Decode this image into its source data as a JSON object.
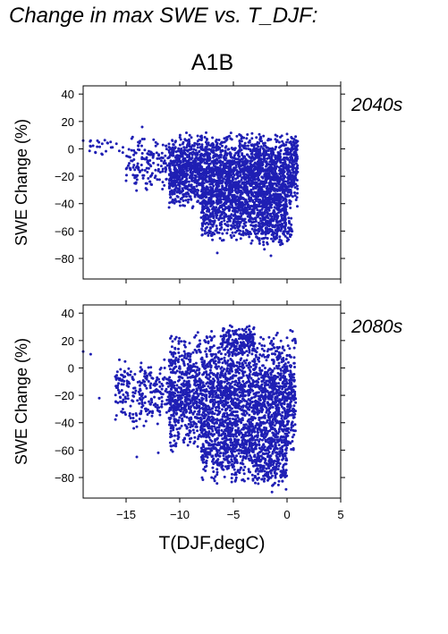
{
  "title": "Change in max SWE vs. T_DJF:",
  "scenario": "A1B",
  "chart_data": [
    {
      "type": "scatter",
      "period_label": "2040s",
      "xlabel": "T(DJF,degC)",
      "ylabel": "SWE Change (%)",
      "xlim": [
        -19,
        5
      ],
      "ylim": [
        -95,
        46
      ],
      "xticks": [
        "−15",
        "−10",
        "−5",
        "0",
        "5"
      ],
      "yticks": [
        "40",
        "20",
        "0",
        "−20",
        "−40",
        "−60",
        "−80"
      ],
      "point_color": "#1f1fb4",
      "clusters": [
        {
          "x_range": [
            -11,
            1
          ],
          "y_range": [
            -45,
            13
          ],
          "n": 2300
        },
        {
          "x_range": [
            -8,
            0
          ],
          "y_range": [
            -70,
            -20
          ],
          "n": 900
        },
        {
          "x_range": [
            -15,
            -10
          ],
          "y_range": [
            -35,
            12
          ],
          "n": 180
        },
        {
          "x_range": [
            -18.5,
            -15
          ],
          "y_range": [
            -5,
            8
          ],
          "n": 25
        },
        {
          "x_range": [
            -3,
            0.5
          ],
          "y_range": [
            -75,
            -40
          ],
          "n": 160
        }
      ],
      "outliers": [
        [
          -19,
          6
        ],
        [
          -18.3,
          6
        ],
        [
          -13.5,
          16
        ],
        [
          -6.5,
          -76
        ],
        [
          -1.5,
          -78
        ],
        [
          0.8,
          9
        ]
      ]
    },
    {
      "type": "scatter",
      "period_label": "2080s",
      "xlabel": "T(DJF,degC)",
      "ylabel": "SWE Change (%)",
      "xlim": [
        -19,
        5
      ],
      "ylim": [
        -95,
        46
      ],
      "xticks": [
        "−15",
        "−10",
        "−5",
        "0",
        "5"
      ],
      "yticks": [
        "40",
        "20",
        "0",
        "−20",
        "−40",
        "−60",
        "−80"
      ],
      "point_color": "#1f1fb4",
      "clusters": [
        {
          "x_range": [
            -11,
            0.8
          ],
          "y_range": [
            -65,
            28
          ],
          "n": 2400
        },
        {
          "x_range": [
            -8,
            0
          ],
          "y_range": [
            -85,
            -35
          ],
          "n": 700
        },
        {
          "x_range": [
            -16,
            -11
          ],
          "y_range": [
            -45,
            12
          ],
          "n": 250
        },
        {
          "x_range": [
            -6,
            -3
          ],
          "y_range": [
            10,
            32
          ],
          "n": 160
        },
        {
          "x_range": [
            -3,
            0
          ],
          "y_range": [
            -92,
            -60
          ],
          "n": 90
        }
      ],
      "outliers": [
        [
          -19,
          12
        ],
        [
          -18.3,
          10
        ],
        [
          -17.5,
          -22
        ],
        [
          -14,
          -65
        ],
        [
          -12,
          -62
        ],
        [
          -1,
          24
        ],
        [
          0,
          22
        ]
      ]
    }
  ]
}
